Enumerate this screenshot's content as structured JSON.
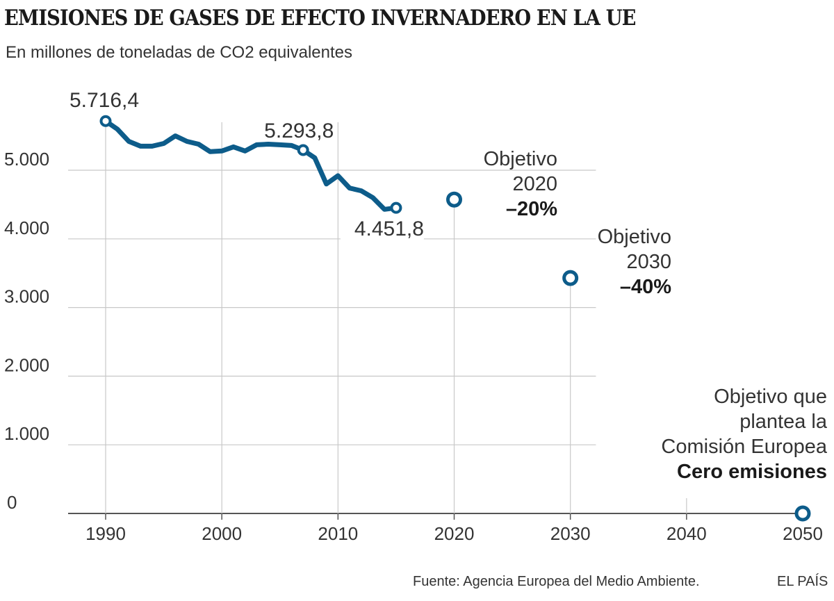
{
  "header": {
    "title": "EMISIONES DE GASES DE EFECTO INVERNADERO EN LA UE",
    "subtitle": "En millones de toneladas de CO2 equivalentes"
  },
  "footer": {
    "source": "Fuente: Agencia Europea del Medio Ambiente.",
    "brand": "EL PAÍS"
  },
  "colors": {
    "series": "#0d5c8a",
    "grid": "#c8c8c8",
    "axis": "#555555",
    "text": "#333333"
  },
  "chart_data": {
    "type": "line",
    "title": "EMISIONES DE GASES DE EFECTO INVERNADERO EN LA UE",
    "subtitle": "En millones de toneladas de CO2 equivalentes",
    "xlim": [
      1990,
      2050
    ],
    "ylim": [
      0,
      5800
    ],
    "x_ticks": [
      1990,
      2000,
      2010,
      2020,
      2030,
      2040,
      2050
    ],
    "x_tick_labels": [
      "1990",
      "2000",
      "2010",
      "2020",
      "2030",
      "2040",
      "2050"
    ],
    "y_ticks": [
      0,
      1000,
      2000,
      3000,
      4000,
      5000
    ],
    "y_tick_labels": [
      "0",
      "1.000",
      "2.000",
      "3.000",
      "4.000",
      "5.000"
    ],
    "grid": true,
    "series": [
      {
        "x": [
          1990,
          1991,
          1992,
          1993,
          1994,
          1995,
          1996,
          1997,
          1998,
          1999,
          2000,
          2001,
          2002,
          2003,
          2004,
          2005,
          2006,
          2007,
          2008,
          2009,
          2010,
          2011,
          2012,
          2013,
          2014,
          2015
        ],
        "values": [
          5716.4,
          5600,
          5420,
          5350,
          5350,
          5390,
          5500,
          5420,
          5380,
          5270,
          5280,
          5340,
          5280,
          5370,
          5380,
          5370,
          5360,
          5293.8,
          5180,
          4800,
          4920,
          4740,
          4700,
          4600,
          4430,
          4451.8
        ]
      }
    ],
    "annotations": [
      {
        "label": "5.716,4",
        "x": 1990,
        "y": 5716.4
      },
      {
        "label": "5.293,8",
        "x": 2007,
        "y": 5293.8
      },
      {
        "label": "4.451,8",
        "x": 2015,
        "y": 4451.8
      }
    ],
    "targets": [
      {
        "x": 2020,
        "y": 4573,
        "lines": [
          "Objetivo",
          "2020"
        ],
        "emphasis": "–20%"
      },
      {
        "x": 2030,
        "y": 3430,
        "lines": [
          "Objetivo",
          "2030"
        ],
        "emphasis": "–40%"
      },
      {
        "x": 2050,
        "y": 0,
        "lines": [
          "Objetivo que",
          "plantea la",
          "Comisión Europea"
        ],
        "emphasis": "Cero emisiones"
      }
    ]
  }
}
